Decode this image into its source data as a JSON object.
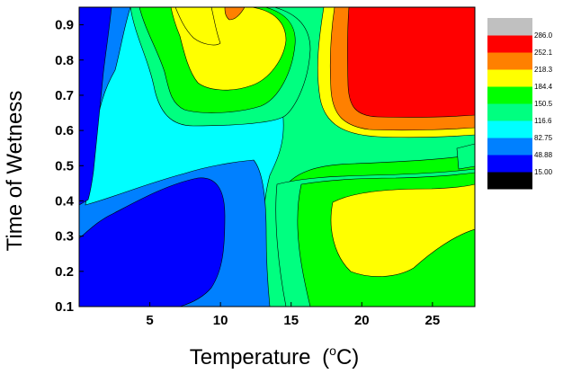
{
  "chart_data": {
    "type": "heatmap",
    "subtype": "filled-contour",
    "xlabel": "Temperature",
    "xlabel_unit_open": "(",
    "xlabel_unit_deg": "o",
    "xlabel_unit_close": "C)",
    "ylabel": "Time of Wetness",
    "xlim": [
      0,
      28
    ],
    "ylim": [
      0.1,
      0.95
    ],
    "xticks": [
      5,
      10,
      15,
      20,
      25
    ],
    "xtick_labels": [
      "5",
      "10",
      "15",
      "20",
      "25"
    ],
    "yticks": [
      0.1,
      0.2,
      0.3,
      0.4,
      0.5,
      0.6,
      0.7,
      0.8,
      0.9
    ],
    "ytick_labels": [
      "0.1",
      "0.2",
      "0.3",
      "0.4",
      "0.5",
      "0.6",
      "0.7",
      "0.8",
      "0.9"
    ],
    "legend": {
      "position": "right",
      "levels": [
        "15.00",
        "48.88",
        "82.75",
        "116.6",
        "150.5",
        "184.4",
        "218.3",
        "252.1",
        "286.0"
      ],
      "colors": [
        "#000000",
        "#0000ff",
        "#0080ff",
        "#00ffff",
        "#00ff80",
        "#00ff00",
        "#ffff00",
        "#ff8000",
        "#ff0000",
        "#c0c0c0"
      ]
    },
    "grid": false
  }
}
